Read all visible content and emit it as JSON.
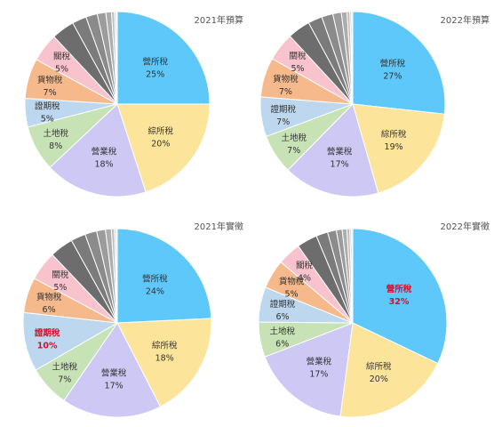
{
  "colors": {
    "highlight_text": "#d0122c",
    "slices": [
      "#5ec8fa",
      "#fce59a",
      "#cdc8f4",
      "#c7e3b6",
      "#bcd7ee",
      "#f5b98c",
      "#f8c3cd",
      "#6d6d6d",
      "#7b7b7b",
      "#8b8b8b",
      "#9c9c9c",
      "#adadad",
      "#bdbdbd",
      "#cccccc",
      "#dadada",
      "#e6e6e6"
    ]
  },
  "chart_data": [
    {
      "type": "pie",
      "title": "2021年預算",
      "slices": [
        {
          "label": "營所稅",
          "value": 25,
          "value_text": "25%"
        },
        {
          "label": "綜所稅",
          "value": 20,
          "value_text": "20%"
        },
        {
          "label": "營業稅",
          "value": 18,
          "value_text": "18%"
        },
        {
          "label": "土地稅",
          "value": 8,
          "value_text": "8%"
        },
        {
          "label": "證期稅",
          "value": 5,
          "value_text": "5%"
        },
        {
          "label": "貨物稅",
          "value": 7,
          "value_text": "7%"
        },
        {
          "label": "關稅",
          "value": 5,
          "value_text": "5%"
        },
        {
          "label": "",
          "value": 4
        },
        {
          "label": "",
          "value": 2.5
        },
        {
          "label": "",
          "value": 2
        },
        {
          "label": "",
          "value": 1.5
        },
        {
          "label": "",
          "value": 1
        },
        {
          "label": "",
          "value": 0.5
        },
        {
          "label": "",
          "value": 0.3
        },
        {
          "label": "",
          "value": 0.2
        }
      ]
    },
    {
      "type": "pie",
      "title": "2022年預算",
      "slices": [
        {
          "label": "營所稅",
          "value": 27,
          "value_text": "27%"
        },
        {
          "label": "綜所稅",
          "value": 19,
          "value_text": "19%"
        },
        {
          "label": "營業稅",
          "value": 17,
          "value_text": "17%"
        },
        {
          "label": "土地稅",
          "value": 7,
          "value_text": "7%"
        },
        {
          "label": "證期稅",
          "value": 7,
          "value_text": "7%"
        },
        {
          "label": "貨物稅",
          "value": 7,
          "value_text": "7%"
        },
        {
          "label": "關稅",
          "value": 5,
          "value_text": "5%"
        },
        {
          "label": "",
          "value": 4
        },
        {
          "label": "",
          "value": 2.5
        },
        {
          "label": "",
          "value": 2
        },
        {
          "label": "",
          "value": 1.5
        },
        {
          "label": "",
          "value": 1
        },
        {
          "label": "",
          "value": 0.5
        },
        {
          "label": "",
          "value": 0.3
        },
        {
          "label": "",
          "value": 0.2
        }
      ]
    },
    {
      "type": "pie",
      "title": "2021年實徵",
      "slices": [
        {
          "label": "營所稅",
          "value": 24,
          "value_text": "24%"
        },
        {
          "label": "綜所稅",
          "value": 18,
          "value_text": "18%"
        },
        {
          "label": "營業稅",
          "value": 17,
          "value_text": "17%"
        },
        {
          "label": "土地稅",
          "value": 7,
          "value_text": "7%"
        },
        {
          "label": "證期稅",
          "value": 10,
          "value_text": "10%",
          "highlight": true
        },
        {
          "label": "貨物稅",
          "value": 6,
          "value_text": "6%"
        },
        {
          "label": "關稅",
          "value": 5,
          "value_text": "5%"
        },
        {
          "label": "",
          "value": 4
        },
        {
          "label": "",
          "value": 2.5
        },
        {
          "label": "",
          "value": 2
        },
        {
          "label": "",
          "value": 1.5
        },
        {
          "label": "",
          "value": 1
        },
        {
          "label": "",
          "value": 0.5
        },
        {
          "label": "",
          "value": 0.3
        },
        {
          "label": "",
          "value": 0.2
        }
      ]
    },
    {
      "type": "pie",
      "title": "2022年實徵",
      "slices": [
        {
          "label": "營所稅",
          "value": 32,
          "value_text": "32%",
          "highlight": true
        },
        {
          "label": "綜所稅",
          "value": 20,
          "value_text": "20%"
        },
        {
          "label": "營業稅",
          "value": 17,
          "value_text": "17%"
        },
        {
          "label": "土地稅",
          "value": 6,
          "value_text": "6%"
        },
        {
          "label": "證期稅",
          "value": 6,
          "value_text": "6%"
        },
        {
          "label": "貨物稅",
          "value": 5,
          "value_text": "5%"
        },
        {
          "label": "關稅",
          "value": 4,
          "value_text": "4%"
        },
        {
          "label": "",
          "value": 3.5
        },
        {
          "label": "",
          "value": 2
        },
        {
          "label": "",
          "value": 1.5
        },
        {
          "label": "",
          "value": 1
        },
        {
          "label": "",
          "value": 0.8
        },
        {
          "label": "",
          "value": 0.5
        },
        {
          "label": "",
          "value": 0.3
        },
        {
          "label": "",
          "value": 0.2
        }
      ]
    }
  ]
}
